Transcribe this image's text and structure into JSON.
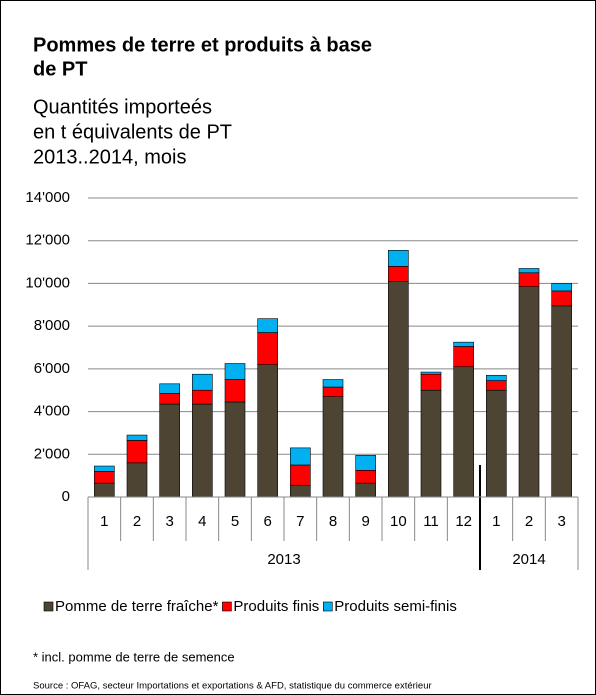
{
  "chart_data": {
    "type": "stacked_bar",
    "title": [
      "Pommes de terre et produits à base",
      "de PT"
    ],
    "subtitle": [
      "Quantités importeés",
      "en t équivalents de PT",
      "2013..2014, mois"
    ],
    "category_groups": [
      {
        "label": "2013",
        "categories": [
          "1",
          "2",
          "3",
          "4",
          "5",
          "6",
          "7",
          "8",
          "9",
          "10",
          "11",
          "12"
        ]
      },
      {
        "label": "2014",
        "categories": [
          "1",
          "2",
          "3"
        ]
      }
    ],
    "series": [
      {
        "name": "Pomme de terre fraîche*",
        "color": "#4d4433",
        "values": [
          650,
          1600,
          4350,
          4350,
          4450,
          6200,
          550,
          4700,
          650,
          10100,
          5000,
          6100,
          5000,
          9850,
          8950
        ]
      },
      {
        "name": "Produits finis",
        "color": "#ff0000",
        "values": [
          550,
          1050,
          500,
          650,
          1050,
          1500,
          950,
          450,
          600,
          700,
          750,
          950,
          450,
          650,
          700
        ]
      },
      {
        "name": "Produits semi-finis",
        "color": "#00b0f0",
        "values": [
          250,
          250,
          450,
          750,
          750,
          650,
          800,
          350,
          700,
          750,
          100,
          200,
          250,
          200,
          350
        ]
      }
    ],
    "ylim": [
      0,
      14000
    ],
    "yticks": [
      0,
      {
        "value": 2000,
        "label": "2'000"
      },
      {
        "value": 4000,
        "label": "4'000"
      },
      {
        "value": 6000,
        "label": "6'000"
      },
      {
        "value": 8000,
        "label": "8'000"
      },
      {
        "value": 10000,
        "label": "10'000"
      },
      {
        "value": 12000,
        "label": "12'000"
      },
      {
        "value": 14000,
        "label": "14'000"
      }
    ],
    "grid": true,
    "footnote": "* incl. pomme de terre de semence",
    "source": "Source : OFAG, secteur Importations et exportations & AFD, statistique du commerce extérieur"
  }
}
